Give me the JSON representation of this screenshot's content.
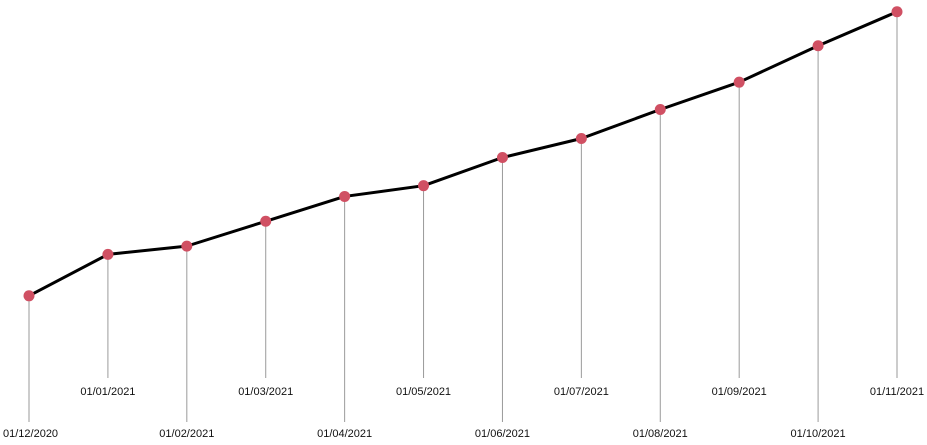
{
  "chart_data": {
    "type": "line",
    "x": [
      "01/12/2020",
      "01/01/2021",
      "01/02/2021",
      "01/03/2021",
      "01/04/2021",
      "01/05/2021",
      "01/06/2021",
      "01/07/2021",
      "01/08/2021",
      "01/09/2021",
      "01/10/2021",
      "01/11/2021"
    ],
    "series": [
      {
        "values": [
          10,
          15,
          16,
          19,
          22,
          23.3,
          26.7,
          29,
          32.5,
          35.8,
          40.2,
          44.3
        ]
      }
    ],
    "ylim": [
      -5,
      45
    ],
    "grid": false,
    "colors": {
      "line": "#000000",
      "marker": "#d05063",
      "drop_line": "#9a9a9a"
    }
  }
}
